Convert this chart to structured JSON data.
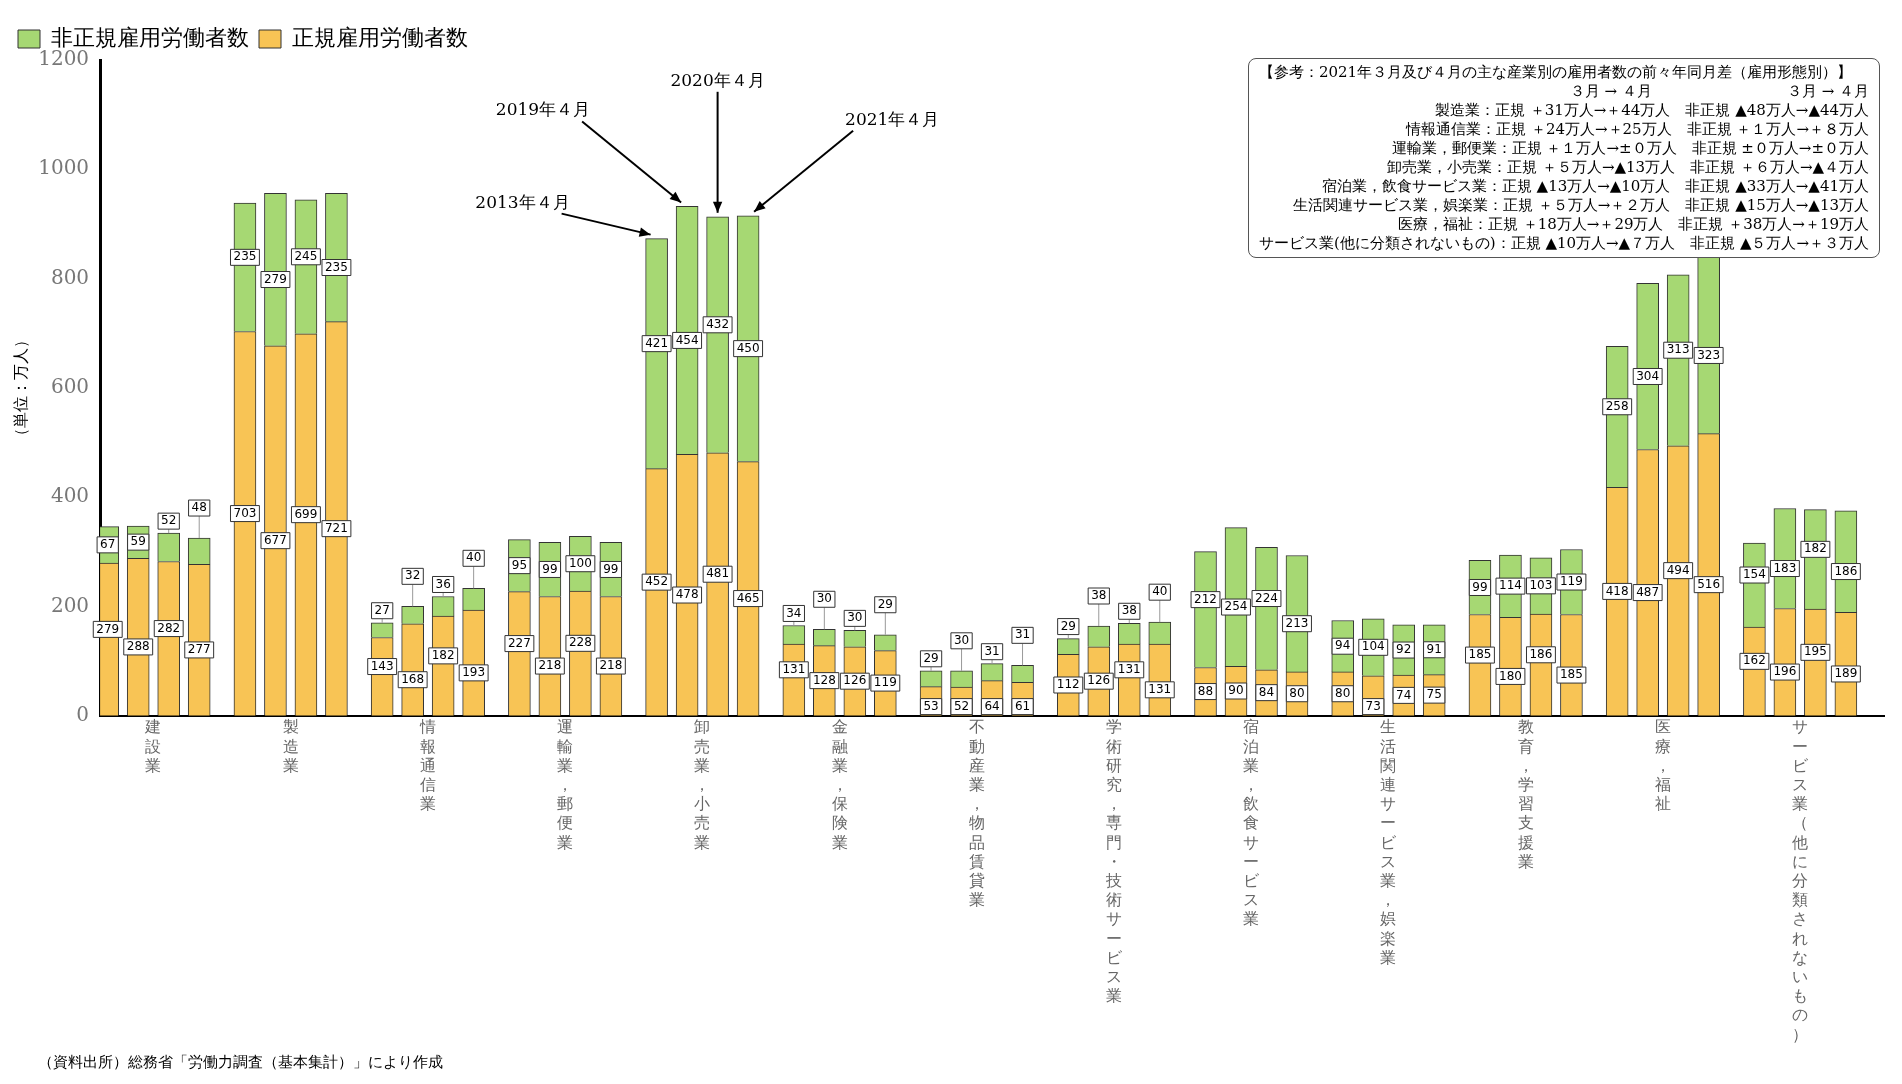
{
  "chart_data": {
    "type": "bar",
    "ylabel": "（単位：万人）",
    "categories": [
      null,
      null,
      null,
      "建設業",
      null,
      null,
      null,
      null,
      null,
      null,
      null,
      null,
      "製造業",
      null,
      null,
      null,
      null,
      null,
      null,
      null,
      null,
      "情報通信業",
      null,
      null,
      null,
      null,
      null,
      null,
      null,
      null,
      "運輸業，郵便業",
      null,
      null,
      null,
      null,
      null,
      null,
      null,
      null,
      "卸売業，小売業",
      null,
      null,
      null,
      null,
      null,
      null,
      null,
      null,
      "金融業，保険業",
      null,
      null,
      null,
      null,
      null,
      null,
      null,
      null,
      "不動産業，物品賃貸業",
      null,
      null,
      null,
      null,
      null,
      null,
      null,
      null,
      "学術研究，専門・技術サービス業",
      null,
      null,
      null,
      null,
      null,
      null,
      null,
      null,
      "宿泊業，飲食サービス業",
      null,
      null,
      null,
      null,
      null,
      null,
      null,
      null,
      "生活関連サービス業，娯楽業",
      null,
      null,
      null,
      null,
      null,
      null,
      null,
      null,
      "教育，学習支援業",
      null,
      null,
      null,
      null,
      null,
      null,
      null,
      null,
      "医療，福祉",
      null,
      null,
      null,
      null,
      null,
      null,
      null,
      null,
      "サービス業（他に分類されないもの）",
      null,
      null,
      null,
      null,
      null
    ],
    "stacked": true,
    "ylim": [
      0,
      1200
    ],
    "yticks": [
      0,
      200,
      400,
      600,
      800,
      1000,
      1200
    ],
    "grid": false,
    "legend": "top left",
    "data_labels": true,
    "series": [
      {
        "name": "正規雇用労働者数",
        "color": "#f8c455",
        "values": [
          279,
          null,
          288,
          null,
          282,
          null,
          277,
          null,
          null,
          703,
          null,
          677,
          null,
          699,
          null,
          721,
          null,
          null,
          143,
          null,
          168,
          null,
          182,
          null,
          193,
          null,
          null,
          227,
          null,
          218,
          null,
          228,
          null,
          218,
          null,
          null,
          452,
          null,
          478,
          null,
          481,
          null,
          465,
          null,
          null,
          131,
          null,
          128,
          null,
          126,
          null,
          119,
          null,
          null,
          53,
          null,
          52,
          null,
          64,
          null,
          61,
          null,
          null,
          112,
          null,
          126,
          null,
          131,
          null,
          131,
          null,
          null,
          88,
          null,
          90,
          null,
          84,
          null,
          80,
          null,
          null,
          80,
          null,
          73,
          null,
          74,
          null,
          75,
          null,
          null,
          185,
          null,
          180,
          null,
          186,
          null,
          185,
          null,
          null,
          418,
          null,
          487,
          null,
          494,
          null,
          516,
          null,
          null,
          162,
          null,
          196,
          null,
          195,
          null,
          189,
          null,
          null
        ]
      },
      {
        "name": "非正規雇用労働者数",
        "color": "#a6d873",
        "values": [
          67,
          null,
          59,
          null,
          52,
          null,
          48,
          null,
          null,
          235,
          null,
          279,
          null,
          245,
          null,
          235,
          null,
          null,
          27,
          null,
          32,
          null,
          36,
          null,
          40,
          null,
          null,
          95,
          null,
          99,
          null,
          100,
          null,
          99,
          null,
          null,
          421,
          null,
          454,
          null,
          432,
          null,
          450,
          null,
          null,
          34,
          null,
          30,
          null,
          30,
          null,
          29,
          null,
          null,
          29,
          null,
          30,
          null,
          31,
          null,
          31,
          null,
          null,
          29,
          null,
          38,
          null,
          38,
          null,
          40,
          null,
          null,
          212,
          null,
          254,
          null,
          224,
          null,
          213,
          null,
          null,
          94,
          null,
          104,
          null,
          92,
          null,
          91,
          null,
          null,
          99,
          null,
          114,
          null,
          103,
          null,
          119,
          null,
          null,
          258,
          null,
          304,
          null,
          313,
          null,
          323,
          null,
          null,
          154,
          null,
          183,
          null,
          182,
          null,
          186,
          null,
          null
        ]
      }
    ],
    "annotations": [
      "2013年４月",
      "2019年４月",
      {
        "text": "2020年４月",
        "y": 913
      },
      "2021年４月",
      "【参考：2021年３月及び４月の主な産業別の雇用者数の前々年同月差（雇用形態別）】",
      "３月 → ４月　　　　　　　　　３月 → ４月",
      "製造業：正規 ＋31万人→＋44万人　非正規 ▲48万人→▲44万人",
      "情報通信業：正規 ＋24万人→＋25万人　非正規 ＋１万人→＋８万人",
      "運輸業，郵便業：正規 ＋１万人→±０万人　非正規 ±０万人→±０万人",
      "卸売業，小売業：正規 ＋５万人→▲13万人　非正規 ＋６万人→▲４万人",
      "宿泊業，飲食サービス業：正規 ▲13万人→▲10万人　非正規 ▲33万人→▲41万人",
      "生活関連サービス業，娯楽業：正規 ＋５万人→＋２万人　非正規 ▲15万人→▲13万人",
      "医療，福祉：正規 ＋18万人→＋29万人　非正規 ＋38万人→＋19万人",
      "サービス業(他に分類されないもの)：正規 ▲10万人→▲７万人　非正規 ▲５万人→＋３万人",
      "（資料出所）総務省「労働力調査（基本集計）」により作成"
    ]
  }
}
